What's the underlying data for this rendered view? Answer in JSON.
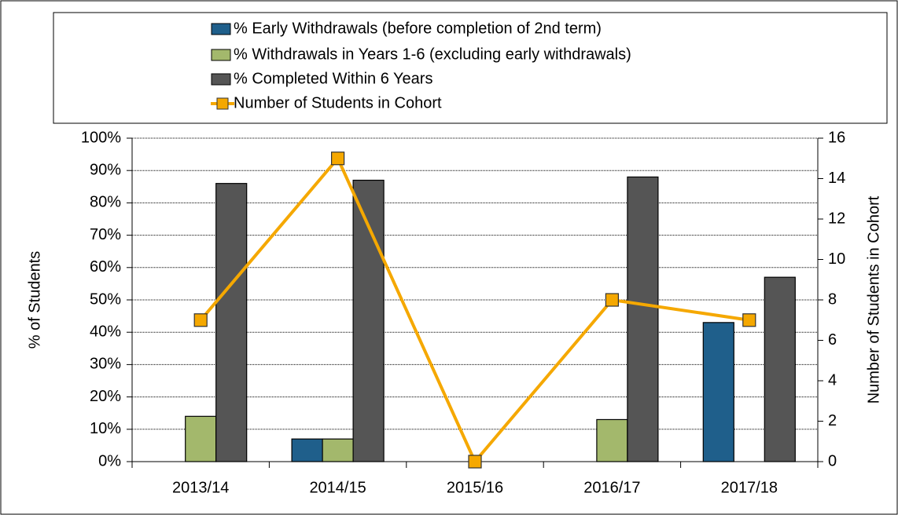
{
  "chart_data": {
    "type": "bar",
    "categories": [
      "2013/14",
      "2014/15",
      "2015/16",
      "2016/17",
      "2017/18"
    ],
    "series": [
      {
        "name": "% Early Withdrawals (before completion of 2nd term)",
        "color": "#1f5f8b",
        "values": [
          0,
          7,
          0,
          0,
          43
        ]
      },
      {
        "name": "% Withdrawals in Years 1-6 (excluding early withdrawals)",
        "color": "#a3b86c",
        "values": [
          14,
          7,
          0,
          13,
          0
        ]
      },
      {
        "name": "% Completed Within 6 Years",
        "color": "#555555",
        "values": [
          86,
          87,
          0,
          88,
          57
        ]
      },
      {
        "name": "Number of Students in Cohort",
        "type": "line",
        "axis": "y2",
        "color": "#f5a800",
        "values": [
          7,
          15,
          0,
          8,
          7
        ]
      }
    ],
    "ylabel": "% of Students",
    "y2label": "Number of Students in Cohort",
    "ylim": [
      0,
      100
    ],
    "yticks": [
      {
        "value": 0,
        "label": "0%"
      },
      {
        "value": 10,
        "label": "10%"
      },
      {
        "value": 20,
        "label": "20%"
      },
      {
        "value": 30,
        "label": "30%"
      },
      {
        "value": 40,
        "label": "40%"
      },
      {
        "value": 50,
        "label": "50%"
      },
      {
        "value": 60,
        "label": "60%"
      },
      {
        "value": 70,
        "label": "70%"
      },
      {
        "value": 80,
        "label": "80%"
      },
      {
        "value": 90,
        "label": "90%"
      },
      {
        "value": 100,
        "label": "100%"
      }
    ],
    "y2lim": [
      0,
      16
    ],
    "y2ticks": [
      0,
      2,
      4,
      6,
      8,
      10,
      12,
      14,
      16
    ],
    "grid": true,
    "legend": "top"
  }
}
